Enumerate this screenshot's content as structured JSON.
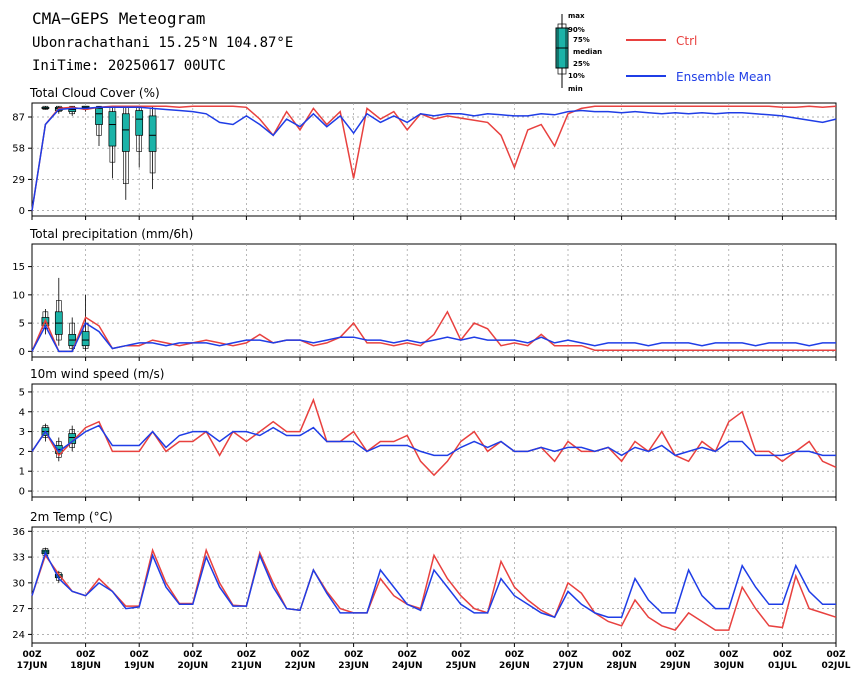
{
  "header": {
    "title": "CMA−GEPS Meteogram",
    "location": "Ubonrachathani 15.25°N 104.87°E",
    "init_time": "IniTime: 20250617 00UTC"
  },
  "legend": {
    "box_keys": [
      "max",
      "90%",
      "75%",
      "median",
      "25%",
      "10%",
      "min"
    ],
    "ctrl_label": "Ctrl",
    "mean_label": "Ensemble Mean"
  },
  "colors": {
    "ctrl": "#e8413f",
    "mean": "#1f3de6",
    "box_fill": "#1bb3a8",
    "box_dark": "#0b5f5a"
  },
  "x_axis": {
    "labels": [
      {
        "time": "00Z",
        "date": "17JUN"
      },
      {
        "time": "00Z",
        "date": "18JUN"
      },
      {
        "time": "00Z",
        "date": "19JUN"
      },
      {
        "time": "00Z",
        "date": "20JUN"
      },
      {
        "time": "00Z",
        "date": "21JUN"
      },
      {
        "time": "00Z",
        "date": "22JUN"
      },
      {
        "time": "00Z",
        "date": "23JUN"
      },
      {
        "time": "00Z",
        "date": "24JUN"
      },
      {
        "time": "00Z",
        "date": "25JUN"
      },
      {
        "time": "00Z",
        "date": "26JUN"
      },
      {
        "time": "00Z",
        "date": "27JUN"
      },
      {
        "time": "00Z",
        "date": "28JUN"
      },
      {
        "time": "00Z",
        "date": "29JUN"
      },
      {
        "time": "00Z",
        "date": "30JUN"
      },
      {
        "time": "00Z",
        "date": "01JUL"
      },
      {
        "time": "00Z",
        "date": "02JUL"
      }
    ],
    "step_hours": 6,
    "steps": 61
  },
  "chart_data": [
    {
      "type": "box",
      "title": "Total Cloud Cover (%)",
      "ylim": [
        -5,
        100
      ],
      "yticks": [
        0,
        29,
        58,
        87
      ],
      "ctrl": [
        0,
        80,
        95,
        96,
        94,
        96,
        97,
        97,
        97,
        97,
        97,
        96,
        97,
        97,
        97,
        97,
        96,
        85,
        70,
        92,
        75,
        95,
        80,
        92,
        30,
        95,
        85,
        92,
        75,
        90,
        85,
        88,
        86,
        84,
        82,
        70,
        40,
        75,
        80,
        60,
        90,
        95,
        97,
        97,
        97,
        97,
        97,
        97,
        97,
        97,
        97,
        97,
        97,
        97,
        97,
        97,
        96,
        96,
        97,
        96,
        97
      ],
      "mean": [
        0,
        80,
        94,
        95,
        95,
        96,
        96,
        96,
        96,
        95,
        94,
        93,
        92,
        90,
        82,
        80,
        88,
        80,
        70,
        85,
        78,
        90,
        78,
        88,
        72,
        90,
        82,
        88,
        82,
        90,
        88,
        90,
        90,
        88,
        90,
        89,
        88,
        88,
        90,
        89,
        92,
        93,
        92,
        92,
        91,
        92,
        91,
        90,
        91,
        90,
        91,
        90,
        91,
        91,
        90,
        89,
        88,
        86,
        84,
        82,
        85
      ],
      "boxes": [
        {
          "min": 94,
          "p10": 94,
          "p25": 95,
          "med": 95,
          "p75": 96,
          "p90": 97,
          "max": 97
        },
        {
          "min": 90,
          "p10": 92,
          "p25": 93,
          "med": 95,
          "p75": 96,
          "p90": 97,
          "max": 97
        },
        {
          "min": 88,
          "p10": 90,
          "p25": 92,
          "med": 94,
          "p75": 96,
          "p90": 97,
          "max": 97
        },
        {
          "min": 92,
          "p10": 94,
          "p25": 95,
          "med": 96,
          "p75": 97,
          "p90": 97,
          "max": 97
        },
        {
          "min": 60,
          "p10": 70,
          "p25": 80,
          "med": 90,
          "p75": 95,
          "p90": 97,
          "max": 97
        },
        {
          "min": 30,
          "p10": 45,
          "p25": 60,
          "med": 80,
          "p75": 92,
          "p90": 96,
          "max": 97
        },
        {
          "min": 10,
          "p10": 25,
          "p25": 55,
          "med": 75,
          "p75": 90,
          "p90": 96,
          "max": 97
        },
        {
          "min": 40,
          "p10": 55,
          "p25": 70,
          "med": 85,
          "p75": 93,
          "p90": 96,
          "max": 97
        },
        {
          "min": 20,
          "p10": 35,
          "p25": 55,
          "med": 70,
          "p75": 88,
          "p90": 95,
          "max": 97
        }
      ]
    },
    {
      "type": "box",
      "title": "Total precipitation (mm/6h)",
      "ylim": [
        -1,
        19
      ],
      "yticks": [
        0,
        5,
        10,
        15
      ],
      "ctrl": [
        0,
        5.5,
        0,
        0,
        6,
        4.5,
        0.5,
        1,
        1,
        2,
        1.5,
        1,
        1.5,
        2,
        1.5,
        1,
        1.5,
        3,
        1.5,
        2,
        2,
        1,
        1.5,
        2.5,
        5,
        1.5,
        1.5,
        1,
        1.5,
        1,
        3,
        7,
        2,
        5,
        4,
        1,
        1.5,
        1,
        3,
        1,
        1,
        1,
        0.2,
        0.2,
        0.2,
        0.2,
        0.2,
        0.2,
        0.2,
        0.2,
        0.2,
        0.2,
        0.2,
        0.2,
        0.2,
        0.2,
        0.2,
        0.2,
        0.2,
        0.2,
        0.2
      ],
      "mean": [
        0,
        4.5,
        0,
        0,
        5,
        3.5,
        0.5,
        1,
        1.5,
        1.5,
        1,
        1.5,
        1.5,
        1.5,
        1,
        1.5,
        2,
        2,
        1.5,
        2,
        2,
        1.5,
        2,
        2.5,
        2.5,
        2,
        2,
        1.5,
        2,
        1.5,
        2,
        2.5,
        2,
        2.5,
        2,
        2,
        2,
        1.5,
        2.5,
        1.5,
        2,
        1.5,
        1,
        1.5,
        1.5,
        1.5,
        1,
        1.5,
        1.5,
        1.5,
        1,
        1.5,
        1.5,
        1.5,
        1,
        1.5,
        1.5,
        1.5,
        1,
        1.5,
        1.5
      ],
      "boxes": [
        {
          "min": 3,
          "p10": 4,
          "p25": 4.5,
          "med": 5,
          "p75": 6,
          "p90": 7,
          "max": 7.5
        },
        {
          "min": 1,
          "p10": 2,
          "p25": 3,
          "med": 5,
          "p75": 7,
          "p90": 9,
          "max": 13
        },
        {
          "min": 0,
          "p10": 0.5,
          "p25": 1,
          "med": 2,
          "p75": 3,
          "p90": 5,
          "max": 6
        },
        {
          "min": 0,
          "p10": 0.5,
          "p25": 1,
          "med": 2,
          "p75": 3.5,
          "p90": 5,
          "max": 10
        }
      ]
    },
    {
      "type": "box",
      "title": "10m wind speed (m/s)",
      "ylim": [
        -0.3,
        5.4
      ],
      "yticks": [
        0,
        1,
        2,
        3,
        4,
        5
      ],
      "ctrl": [
        2,
        3,
        1.8,
        2.5,
        3.2,
        3.5,
        2,
        2,
        2,
        3,
        2,
        2.5,
        2.5,
        3,
        1.8,
        3,
        2.5,
        3,
        3.5,
        3,
        3,
        4.6,
        2.5,
        2.5,
        3,
        2,
        2.5,
        2.5,
        2.8,
        1.5,
        0.8,
        1.5,
        2.5,
        3,
        2,
        2.5,
        2,
        2,
        2.2,
        1.5,
        2.5,
        2,
        2,
        2.2,
        1.5,
        2.5,
        2,
        3,
        1.8,
        1.5,
        2.5,
        2,
        3.5,
        4,
        2,
        2,
        1.5,
        2,
        2.5,
        1.5,
        1.2
      ],
      "mean": [
        2,
        3,
        2,
        2.5,
        3,
        3.3,
        2.3,
        2.3,
        2.3,
        3,
        2.2,
        2.8,
        3,
        3,
        2.5,
        3,
        3,
        2.8,
        3.2,
        2.8,
        2.8,
        3.2,
        2.5,
        2.5,
        2.5,
        2,
        2.3,
        2.3,
        2.3,
        2,
        1.8,
        1.8,
        2.2,
        2.5,
        2.2,
        2.5,
        2,
        2,
        2.2,
        2,
        2.2,
        2.2,
        2,
        2.2,
        1.8,
        2.2,
        2,
        2.3,
        1.8,
        2,
        2.2,
        2,
        2.5,
        2.5,
        1.8,
        1.8,
        1.8,
        2,
        2,
        1.8,
        1.8
      ],
      "boxes": [
        {
          "min": 2.5,
          "p10": 2.7,
          "p25": 2.8,
          "med": 3,
          "p75": 3.2,
          "p90": 3.3,
          "max": 3.4
        },
        {
          "min": 1.5,
          "p10": 1.7,
          "p25": 1.9,
          "med": 2.1,
          "p75": 2.3,
          "p90": 2.5,
          "max": 2.7
        },
        {
          "min": 2,
          "p10": 2.2,
          "p25": 2.4,
          "med": 2.7,
          "p75": 2.9,
          "p90": 3.1,
          "max": 3.3
        }
      ]
    },
    {
      "type": "box",
      "title": "2m Temp (°C)",
      "ylim": [
        23,
        36.5
      ],
      "yticks": [
        24,
        27,
        30,
        33,
        36
      ],
      "ctrl": [
        28.5,
        33.2,
        31,
        29,
        28.5,
        30.5,
        29,
        27.3,
        27.3,
        33.8,
        30,
        27.6,
        27.6,
        33.8,
        30,
        27.4,
        27.3,
        33.5,
        30,
        27,
        26.8,
        31.5,
        29,
        27,
        26.5,
        26.5,
        30.5,
        28.5,
        27.5,
        27,
        33.2,
        30.5,
        28.5,
        27,
        26.5,
        32.5,
        29.5,
        28,
        26.8,
        26,
        30,
        28.8,
        26.5,
        25.5,
        25,
        28,
        26,
        25,
        24.5,
        26.5,
        25.5,
        24.5,
        24.5,
        29.5,
        27,
        25,
        24.8,
        30.8,
        27,
        26.5,
        26
      ],
      "mean": [
        28.5,
        33.5,
        30.5,
        29,
        28.5,
        30,
        29,
        27,
        27.2,
        33.2,
        29.5,
        27.5,
        27.5,
        33,
        29.5,
        27.3,
        27.3,
        33.2,
        29.5,
        27,
        26.8,
        31.5,
        28.8,
        26.5,
        26.5,
        26.5,
        31.5,
        29.5,
        27.5,
        26.8,
        31.5,
        29.5,
        27.5,
        26.5,
        26.5,
        30.5,
        28.5,
        27.5,
        26.5,
        26,
        29,
        27.5,
        26.5,
        26,
        26,
        30.5,
        28,
        26.5,
        26.5,
        31.5,
        28.5,
        27,
        27,
        32,
        29.5,
        27.5,
        27.5,
        32,
        29,
        27.5,
        27.5
      ],
      "boxes": [
        {
          "min": 33,
          "p10": 33.2,
          "p25": 33.4,
          "med": 33.6,
          "p75": 33.8,
          "p90": 34,
          "max": 34.1
        },
        {
          "min": 30,
          "p10": 30.3,
          "p25": 30.6,
          "med": 30.8,
          "p75": 31,
          "p90": 31.2,
          "max": 31.4
        }
      ]
    }
  ]
}
